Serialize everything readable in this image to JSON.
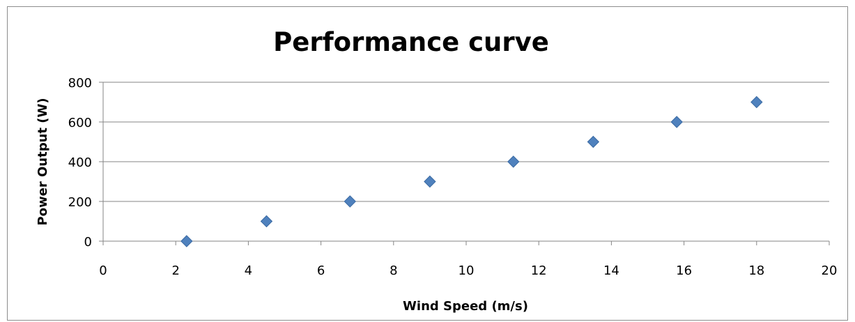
{
  "chart_data": {
    "type": "scatter",
    "title": "Performance curve",
    "xlabel": "Wind Speed (m/s)",
    "ylabel": "Power Output (W)",
    "xlim": [
      0,
      20
    ],
    "ylim": [
      0,
      800
    ],
    "x_ticks": [
      0,
      2,
      4,
      6,
      8,
      10,
      12,
      14,
      16,
      18,
      20
    ],
    "y_ticks": [
      0,
      200,
      400,
      600,
      800
    ],
    "grid": "horizontal",
    "legend": "none",
    "marker": "diamond",
    "series": [
      {
        "color": "#4f81bd",
        "points": [
          {
            "x": 2.3,
            "y": 0
          },
          {
            "x": 4.5,
            "y": 100
          },
          {
            "x": 6.8,
            "y": 200
          },
          {
            "x": 9.0,
            "y": 300
          },
          {
            "x": 11.3,
            "y": 400
          },
          {
            "x": 13.5,
            "y": 500
          },
          {
            "x": 15.8,
            "y": 600
          },
          {
            "x": 18.0,
            "y": 700
          }
        ]
      }
    ],
    "colors": {
      "marker_fill": "#4f81bd",
      "marker_stroke": "#3a6aa3",
      "gridline": "#868686",
      "axis": "#868686",
      "frame": "#8c8c8c"
    }
  }
}
